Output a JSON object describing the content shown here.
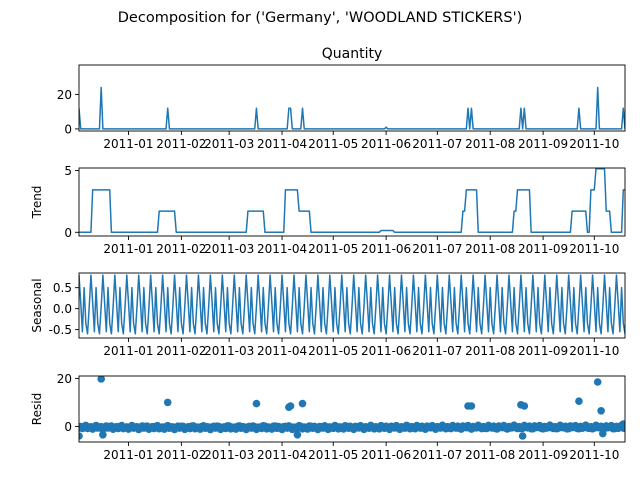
{
  "chart_data": {
    "type": "line",
    "suptitle": "Decomposition for ('Germany', 'WOODLAND  STICKERS')",
    "x_tick_labels": [
      "2011-01",
      "2011-02",
      "2011-03",
      "2011-04",
      "2011-05",
      "2011-06",
      "2011-07",
      "2011-08",
      "2011-09",
      "2011-10"
    ],
    "x_range": [
      "2010-12-03",
      "2011-10-19"
    ],
    "series_color": "#1f77b4",
    "panels": [
      {
        "key": "observed",
        "title": "Quantity",
        "ylabel": "",
        "ylim": [
          -1.2,
          37
        ],
        "yticks": [
          0,
          20
        ],
        "kind": "line",
        "baseline": 0,
        "spikes": [
          {
            "date": "2010-12-03",
            "value": 12
          },
          {
            "date": "2010-12-16",
            "value": 24
          },
          {
            "date": "2011-01-24",
            "value": 12
          },
          {
            "date": "2011-03-17",
            "value": 12
          },
          {
            "date": "2011-04-05",
            "value": 12
          },
          {
            "date": "2011-04-06",
            "value": 12
          },
          {
            "date": "2011-04-13",
            "value": 12
          },
          {
            "date": "2011-06-01",
            "value": 1
          },
          {
            "date": "2011-07-19",
            "value": 12
          },
          {
            "date": "2011-07-21",
            "value": 12
          },
          {
            "date": "2011-08-19",
            "value": 12
          },
          {
            "date": "2011-08-21",
            "value": 12
          },
          {
            "date": "2011-09-22",
            "value": 12
          },
          {
            "date": "2011-10-03",
            "value": 24
          },
          {
            "date": "2011-10-18",
            "value": 12
          }
        ]
      },
      {
        "key": "trend",
        "title": "",
        "ylabel": "Trend",
        "ylim": [
          -0.3,
          5.2
        ],
        "yticks": [
          0,
          5
        ],
        "kind": "line",
        "baseline": 0,
        "plateaus": [
          {
            "start": "2010-12-11",
            "end": "2010-12-21",
            "value": 3.43
          },
          {
            "start": "2011-01-19",
            "end": "2011-01-28",
            "value": 1.71
          },
          {
            "start": "2011-03-12",
            "end": "2011-03-21",
            "value": 1.71
          },
          {
            "start": "2011-04-03",
            "end": "2011-04-10",
            "value": 3.43
          },
          {
            "start": "2011-04-11",
            "end": "2011-04-17",
            "value": 1.71
          },
          {
            "start": "2011-05-29",
            "end": "2011-06-05",
            "value": 0.14
          },
          {
            "start": "2011-07-16",
            "end": "2011-07-17",
            "value": 1.71
          },
          {
            "start": "2011-07-18",
            "end": "2011-07-24",
            "value": 3.43
          },
          {
            "start": "2011-08-15",
            "end": "2011-08-16",
            "value": 1.71
          },
          {
            "start": "2011-08-17",
            "end": "2011-08-24",
            "value": 3.43
          },
          {
            "start": "2011-09-18",
            "end": "2011-09-26",
            "value": 1.71
          },
          {
            "start": "2011-09-29",
            "end": "2011-10-01",
            "value": 3.43
          },
          {
            "start": "2011-10-02",
            "end": "2011-10-07",
            "value": 5.14
          },
          {
            "start": "2011-10-08",
            "end": "2011-10-10",
            "value": 1.71
          },
          {
            "start": "2011-10-18",
            "end": "2011-10-19",
            "value": 3.43
          }
        ]
      },
      {
        "key": "seasonal",
        "title": "",
        "ylabel": "Seasonal",
        "ylim": [
          -0.7,
          0.85
        ],
        "yticks": [
          -0.5,
          0.0,
          0.5
        ],
        "kind": "line",
        "period_days": 7,
        "pattern": [
          0.8,
          0.15,
          -0.55,
          0.5,
          -0.35,
          -0.6,
          0.05
        ]
      },
      {
        "key": "resid",
        "title": "",
        "ylabel": "Resid",
        "ylim": [
          -6.5,
          21
        ],
        "yticks": [
          0,
          20
        ],
        "kind": "scatter",
        "baseline": 0,
        "points": [
          {
            "date": "2010-12-03",
            "value": -4
          },
          {
            "date": "2010-12-16",
            "value": 19.8
          },
          {
            "date": "2010-12-17",
            "value": -3.5
          },
          {
            "date": "2011-01-24",
            "value": 10
          },
          {
            "date": "2011-03-17",
            "value": 9.5
          },
          {
            "date": "2011-04-05",
            "value": 8
          },
          {
            "date": "2011-04-06",
            "value": 8.5
          },
          {
            "date": "2011-04-13",
            "value": 9.5
          },
          {
            "date": "2011-04-10",
            "value": -3.5
          },
          {
            "date": "2011-07-19",
            "value": 8.5
          },
          {
            "date": "2011-07-21",
            "value": 8.5
          },
          {
            "date": "2011-08-19",
            "value": 9
          },
          {
            "date": "2011-08-21",
            "value": 8.5
          },
          {
            "date": "2011-08-20",
            "value": -4
          },
          {
            "date": "2011-09-22",
            "value": 10.5
          },
          {
            "date": "2011-10-03",
            "value": 18.5
          },
          {
            "date": "2011-10-05",
            "value": 6.5
          },
          {
            "date": "2011-10-06",
            "value": -3
          },
          {
            "date": "2011-10-18",
            "value": 1
          }
        ]
      }
    ]
  }
}
